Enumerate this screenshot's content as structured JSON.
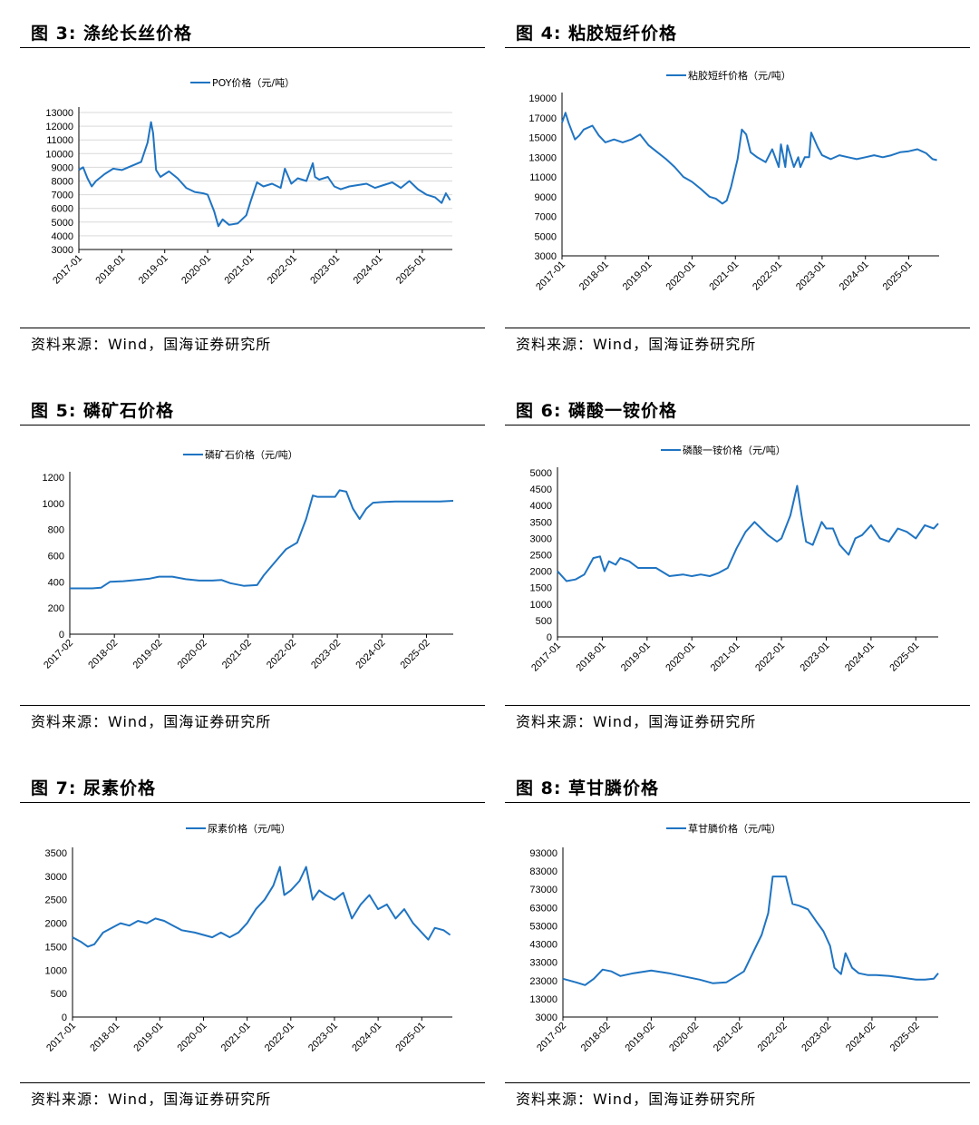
{
  "source_label": "资料来源：Wind，国海证券研究所",
  "colors": {
    "series": "#1f74c2",
    "grid": "#d9d9d9",
    "axis": "#000000"
  },
  "chart_data": [
    {
      "id": "fig3",
      "fig_title": "图 3:  涤纶长丝价格",
      "type": "line",
      "series_name": "POY价格（元/吨）",
      "yticks": [
        3000,
        4000,
        5000,
        6000,
        7000,
        8000,
        9000,
        10000,
        11000,
        12000,
        13000
      ],
      "ylim": [
        3000,
        13000
      ],
      "xticks": [
        "2017-01",
        "2018-01",
        "2019-01",
        "2020-01",
        "2021-01",
        "2022-01",
        "2023-01",
        "2024-01",
        "2025-01"
      ],
      "xlim": [
        2017.0,
        2025.7
      ],
      "grid": true,
      "x": [
        2017.0,
        2017.1,
        2017.2,
        2017.3,
        2017.4,
        2017.6,
        2017.8,
        2018.0,
        2018.3,
        2018.45,
        2018.6,
        2018.68,
        2018.73,
        2018.8,
        2018.9,
        2019.1,
        2019.3,
        2019.5,
        2019.7,
        2019.9,
        2020.0,
        2020.15,
        2020.25,
        2020.35,
        2020.5,
        2020.7,
        2020.9,
        2021.0,
        2021.15,
        2021.3,
        2021.5,
        2021.7,
        2021.8,
        2021.95,
        2022.1,
        2022.3,
        2022.45,
        2022.5,
        2022.6,
        2022.8,
        2022.95,
        2023.1,
        2023.3,
        2023.5,
        2023.7,
        2023.9,
        2024.1,
        2024.3,
        2024.5,
        2024.7,
        2024.9,
        2025.1,
        2025.3,
        2025.45,
        2025.55,
        2025.65
      ],
      "values": [
        8800,
        9000,
        8200,
        7600,
        8000,
        8500,
        8900,
        8800,
        9200,
        9400,
        10800,
        12300,
        11500,
        8800,
        8300,
        8700,
        8200,
        7500,
        7200,
        7100,
        7000,
        5800,
        4700,
        5200,
        4800,
        4900,
        5500,
        6500,
        7900,
        7600,
        7800,
        7500,
        8900,
        7800,
        8200,
        8000,
        9300,
        8300,
        8100,
        8300,
        7600,
        7400,
        7600,
        7700,
        7800,
        7500,
        7700,
        7900,
        7500,
        8000,
        7400,
        7000,
        6800,
        6400,
        7100,
        6600
      ]
    },
    {
      "id": "fig4",
      "fig_title": "图 4:  粘胶短纤价格",
      "type": "line",
      "series_name": "粘胶短纤价格（元/吨）",
      "yticks": [
        3000,
        5000,
        7000,
        9000,
        11000,
        13000,
        15000,
        17000,
        19000
      ],
      "ylim": [
        3000,
        19000
      ],
      "xticks": [
        "2017-01",
        "2018-01",
        "2019-01",
        "2020-01",
        "2021-01",
        "2022-01",
        "2023-01",
        "2024-01",
        "2025-01"
      ],
      "xlim": [
        2017.0,
        2025.7
      ],
      "grid": false,
      "x": [
        2017.0,
        2017.08,
        2017.15,
        2017.3,
        2017.4,
        2017.5,
        2017.7,
        2017.85,
        2018.0,
        2018.2,
        2018.4,
        2018.6,
        2018.8,
        2019.0,
        2019.2,
        2019.4,
        2019.6,
        2019.8,
        2020.0,
        2020.2,
        2020.4,
        2020.55,
        2020.7,
        2020.8,
        2020.9,
        2021.05,
        2021.15,
        2021.25,
        2021.35,
        2021.5,
        2021.7,
        2021.85,
        2022.0,
        2022.05,
        2022.15,
        2022.2,
        2022.35,
        2022.45,
        2022.5,
        2022.6,
        2022.7,
        2022.75,
        2022.9,
        2023.0,
        2023.2,
        2023.4,
        2023.6,
        2023.8,
        2024.0,
        2024.2,
        2024.4,
        2024.6,
        2024.8,
        2025.0,
        2025.2,
        2025.4,
        2025.55,
        2025.65
      ],
      "values": [
        16500,
        17500,
        16500,
        14800,
        15200,
        15800,
        16200,
        15200,
        14500,
        14800,
        14500,
        14800,
        15300,
        14200,
        13500,
        12800,
        12000,
        11000,
        10500,
        9800,
        9000,
        8800,
        8300,
        8600,
        10000,
        12800,
        15800,
        15300,
        13500,
        13000,
        12500,
        13800,
        12000,
        14300,
        12000,
        14200,
        12000,
        13000,
        12000,
        13000,
        13000,
        15500,
        14000,
        13200,
        12800,
        13200,
        13000,
        12800,
        13000,
        13200,
        13000,
        13200,
        13500,
        13600,
        13800,
        13400,
        12800,
        12700
      ]
    },
    {
      "id": "fig5",
      "fig_title": "图 5:  磷矿石价格",
      "type": "line",
      "series_name": "磷矿石价格（元/吨）",
      "yticks": [
        0,
        200,
        400,
        600,
        800,
        1000,
        1200
      ],
      "ylim": [
        0,
        1200
      ],
      "xticks": [
        "2017-02",
        "2018-02",
        "2019-02",
        "2020-02",
        "2021-02",
        "2022-02",
        "2023-02",
        "2024-02",
        "2025-02"
      ],
      "xlim": [
        2017.0,
        2025.6
      ],
      "grid": false,
      "x": [
        2017.0,
        2017.5,
        2017.7,
        2017.9,
        2018.2,
        2018.5,
        2018.8,
        2019.0,
        2019.3,
        2019.6,
        2019.9,
        2020.2,
        2020.4,
        2020.6,
        2020.9,
        2021.2,
        2021.35,
        2021.5,
        2021.7,
        2021.85,
        2022.1,
        2022.3,
        2022.45,
        2022.55,
        2022.75,
        2022.95,
        2023.05,
        2023.2,
        2023.35,
        2023.5,
        2023.65,
        2023.8,
        2024.0,
        2024.3,
        2024.6,
        2025.0,
        2025.3,
        2025.6
      ],
      "values": [
        350,
        350,
        355,
        400,
        405,
        415,
        425,
        440,
        440,
        420,
        410,
        410,
        415,
        390,
        370,
        375,
        450,
        510,
        590,
        650,
        700,
        880,
        1060,
        1050,
        1050,
        1050,
        1100,
        1090,
        960,
        880,
        960,
        1005,
        1010,
        1015,
        1015,
        1015,
        1015,
        1020
      ]
    },
    {
      "id": "fig6",
      "fig_title": "图 6:  磷酸一铵价格",
      "type": "line",
      "series_name": "磷酸一铵价格（元/吨）",
      "yticks": [
        0,
        500,
        1000,
        1500,
        2000,
        2500,
        3000,
        3500,
        4000,
        4500,
        5000
      ],
      "ylim": [
        0,
        5000
      ],
      "xticks": [
        "2017-01",
        "2018-01",
        "2019-01",
        "2020-01",
        "2021-01",
        "2022-01",
        "2023-01",
        "2024-01",
        "2025-01"
      ],
      "xlim": [
        2017.0,
        2025.5
      ],
      "grid": false,
      "x": [
        2017.0,
        2017.2,
        2017.4,
        2017.6,
        2017.8,
        2017.95,
        2018.05,
        2018.15,
        2018.3,
        2018.4,
        2018.6,
        2018.8,
        2019.0,
        2019.2,
        2019.5,
        2019.8,
        2020.0,
        2020.2,
        2020.4,
        2020.6,
        2020.8,
        2021.0,
        2021.2,
        2021.4,
        2021.55,
        2021.7,
        2021.9,
        2022.0,
        2022.2,
        2022.35,
        2022.45,
        2022.55,
        2022.7,
        2022.9,
        2023.0,
        2023.15,
        2023.3,
        2023.5,
        2023.65,
        2023.8,
        2024.0,
        2024.2,
        2024.4,
        2024.6,
        2024.8,
        2025.0,
        2025.2,
        2025.4,
        2025.5
      ],
      "values": [
        2000,
        1700,
        1750,
        1900,
        2400,
        2450,
        2000,
        2300,
        2200,
        2400,
        2300,
        2100,
        2100,
        2100,
        1850,
        1900,
        1850,
        1900,
        1850,
        1950,
        2100,
        2700,
        3200,
        3500,
        3300,
        3100,
        2900,
        3000,
        3700,
        4600,
        3700,
        2900,
        2800,
        3500,
        3300,
        3300,
        2800,
        2500,
        3000,
        3100,
        3400,
        3000,
        2900,
        3300,
        3200,
        3000,
        3400,
        3300,
        3450
      ]
    },
    {
      "id": "fig7",
      "fig_title": "图 7:  尿素价格",
      "type": "line",
      "series_name": "尿素价格（元/吨）",
      "yticks": [
        0,
        500,
        1000,
        1500,
        2000,
        2500,
        3000,
        3500
      ],
      "ylim": [
        0,
        3500
      ],
      "xticks": [
        "2017-01",
        "2018-01",
        "2019-01",
        "2020-01",
        "2021-01",
        "2022-01",
        "2023-01",
        "2024-01",
        "2025-01"
      ],
      "xlim": [
        2017.0,
        2025.7
      ],
      "grid": false,
      "x": [
        2017.0,
        2017.2,
        2017.35,
        2017.5,
        2017.7,
        2017.9,
        2018.1,
        2018.3,
        2018.5,
        2018.7,
        2018.9,
        2019.1,
        2019.3,
        2019.5,
        2019.8,
        2020.0,
        2020.2,
        2020.4,
        2020.6,
        2020.8,
        2021.0,
        2021.2,
        2021.4,
        2021.6,
        2021.75,
        2021.85,
        2022.0,
        2022.2,
        2022.35,
        2022.5,
        2022.65,
        2022.8,
        2023.0,
        2023.2,
        2023.4,
        2023.6,
        2023.8,
        2024.0,
        2024.2,
        2024.4,
        2024.6,
        2024.8,
        2025.0,
        2025.15,
        2025.3,
        2025.5,
        2025.65
      ],
      "values": [
        1700,
        1600,
        1500,
        1550,
        1800,
        1900,
        2000,
        1950,
        2050,
        2000,
        2100,
        2050,
        1950,
        1850,
        1800,
        1750,
        1700,
        1800,
        1700,
        1800,
        2000,
        2300,
        2500,
        2800,
        3200,
        2600,
        2700,
        2900,
        3200,
        2500,
        2700,
        2600,
        2500,
        2650,
        2100,
        2400,
        2600,
        2300,
        2400,
        2100,
        2300,
        2000,
        1800,
        1650,
        1900,
        1850,
        1750
      ]
    },
    {
      "id": "fig8",
      "fig_title": "图 8:  草甘膦价格",
      "type": "line",
      "series_name": "草甘膦价格（元/吨）",
      "yticks": [
        3000,
        13000,
        23000,
        33000,
        43000,
        53000,
        63000,
        73000,
        83000,
        93000
      ],
      "ylim": [
        3000,
        93000
      ],
      "xticks": [
        "2017-02",
        "2018-02",
        "2019-02",
        "2020-02",
        "2021-02",
        "2022-02",
        "2023-02",
        "2024-02",
        "2025-02"
      ],
      "xlim": [
        2017.0,
        2025.5
      ],
      "grid": false,
      "x": [
        2017.0,
        2017.3,
        2017.5,
        2017.7,
        2017.9,
        2018.1,
        2018.3,
        2018.6,
        2019.0,
        2019.4,
        2019.7,
        2019.9,
        2020.1,
        2020.4,
        2020.7,
        2020.9,
        2021.1,
        2021.3,
        2021.5,
        2021.65,
        2021.75,
        2021.85,
        2022.05,
        2022.2,
        2022.35,
        2022.55,
        2022.75,
        2022.9,
        2023.05,
        2023.15,
        2023.3,
        2023.4,
        2023.55,
        2023.7,
        2023.9,
        2024.1,
        2024.4,
        2024.7,
        2025.0,
        2025.2,
        2025.4,
        2025.5
      ],
      "values": [
        24000,
        22000,
        20500,
        24000,
        29000,
        28000,
        25500,
        27000,
        28500,
        27000,
        25500,
        24500,
        23500,
        21500,
        22000,
        25000,
        28000,
        38000,
        48000,
        60000,
        80000,
        80000,
        80000,
        65000,
        64000,
        62000,
        55000,
        50000,
        42000,
        30000,
        26500,
        38000,
        30000,
        27000,
        26000,
        26000,
        25500,
        24500,
        23500,
        23500,
        24000,
        27000
      ]
    }
  ]
}
